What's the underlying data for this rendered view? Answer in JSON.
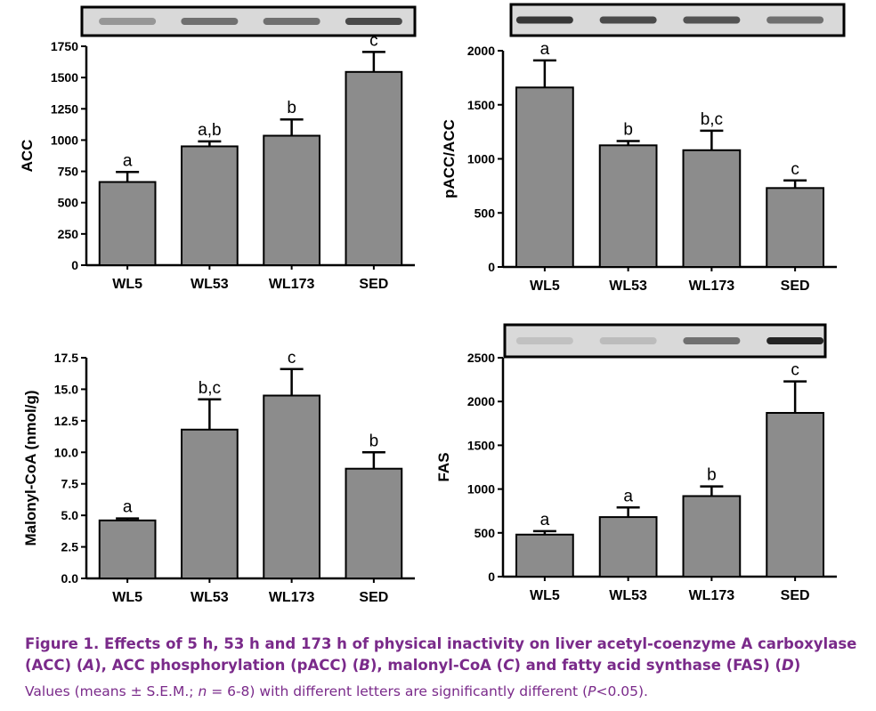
{
  "chart_data": [
    {
      "id": "A",
      "type": "bar",
      "categories": [
        "WL5",
        "WL53",
        "WL173",
        "SED"
      ],
      "values": [
        665,
        950,
        1035,
        1545
      ],
      "errors": [
        80,
        40,
        130,
        160
      ],
      "letters": [
        "a",
        "a,b",
        "b",
        "c"
      ],
      "ylabel": "ACC",
      "ylim": [
        0,
        1750
      ],
      "yticks": [
        0,
        250,
        500,
        750,
        1000,
        1250,
        1500,
        1750
      ],
      "ytick_labels": [
        "0",
        "250",
        "500",
        "750",
        "1000",
        "1250",
        "1500",
        "1750"
      ],
      "blot": true
    },
    {
      "id": "B",
      "type": "bar",
      "categories": [
        "WL5",
        "WL53",
        "WL173",
        "SED"
      ],
      "values": [
        1660,
        1125,
        1080,
        730
      ],
      "errors": [
        250,
        40,
        180,
        70
      ],
      "letters": [
        "a",
        "b",
        "b,c",
        "c"
      ],
      "ylabel": "pACC/ACC",
      "ylim": [
        0,
        2000
      ],
      "yticks": [
        0,
        500,
        1000,
        1500,
        2000
      ],
      "ytick_labels": [
        "0",
        "500",
        "1000",
        "1500",
        "2000"
      ],
      "blot": true
    },
    {
      "id": "C",
      "type": "bar",
      "categories": [
        "WL5",
        "WL53",
        "WL173",
        "SED"
      ],
      "values": [
        4.6,
        11.8,
        14.5,
        8.7
      ],
      "errors": [
        0.15,
        2.4,
        2.1,
        1.3
      ],
      "letters": [
        "a",
        "b,c",
        "c",
        "b"
      ],
      "ylabel": "Malonyl-CoA (nmol/g)",
      "ylim": [
        0,
        17.5
      ],
      "yticks": [
        0,
        2.5,
        5,
        7.5,
        10,
        12.5,
        15,
        17.5
      ],
      "ytick_labels": [
        "0.0",
        "2.5",
        "5.0",
        "7.5",
        "10.0",
        "12.5",
        "15.0",
        "17.5"
      ],
      "blot": false
    },
    {
      "id": "D",
      "type": "bar",
      "categories": [
        "WL5",
        "WL53",
        "WL173",
        "SED"
      ],
      "values": [
        480,
        680,
        920,
        1870
      ],
      "errors": [
        40,
        110,
        110,
        360
      ],
      "letters": [
        "a",
        "a",
        "b",
        "c"
      ],
      "ylabel": "FAS",
      "ylim": [
        0,
        2500
      ],
      "yticks": [
        0,
        500,
        1000,
        1500,
        2000,
        2500
      ],
      "ytick_labels": [
        "0",
        "500",
        "1000",
        "1500",
        "2000",
        "2500"
      ],
      "blot": true
    }
  ],
  "colors": {
    "bar": "#8c8c8c",
    "axis": "#000000",
    "caption": "#7a2a8a"
  },
  "caption": {
    "title_a": "Figure 1.  Effects of 5 h, 53 h and 173 h of physical inactivity on liver acetyl-coenzyme A carboxylase",
    "title_b1": "(ACC) (",
    "title_A": "A",
    "title_b2": "), ACC phosphorylation (pACC) (",
    "title_B": "B",
    "title_b3": "), malonyl-CoA (",
    "title_C": "C",
    "title_b4": ") and fatty acid synthase (FAS) (",
    "title_D": "D",
    "title_b5": ")",
    "note_1": "Values (means ± S.E.M.; ",
    "note_n": "n",
    "note_2": " = 6-8) with different letters are significantly different (",
    "note_P": "P",
    "note_3": "<0.05)."
  }
}
